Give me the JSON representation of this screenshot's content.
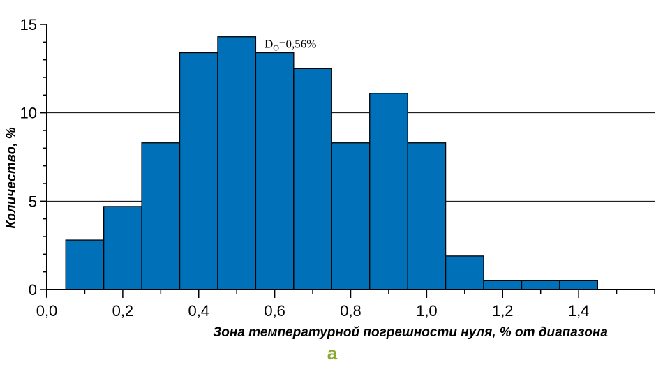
{
  "chart_data": {
    "type": "bar",
    "title": "",
    "xlabel": "Зона температурной погрешности нуля, % от диапазона",
    "ylabel": "Количество, %",
    "x_ticks": [
      "0,0",
      "0,2",
      "0,4",
      "0,6",
      "0,8",
      "1,0",
      "1,2",
      "1,4"
    ],
    "x_tick_values": [
      0.0,
      0.2,
      0.4,
      0.6,
      0.8,
      1.0,
      1.2,
      1.4
    ],
    "y_ticks": [
      "0",
      "5",
      "10",
      "15"
    ],
    "y_tick_values": [
      0,
      5,
      10,
      15
    ],
    "xlim": [
      0.0,
      1.6
    ],
    "ylim": [
      0,
      15
    ],
    "grid": "horizontal",
    "bar_color": "#0070b8",
    "bins": [
      {
        "x0": 0.05,
        "x1": 0.15,
        "value": 2.8
      },
      {
        "x0": 0.15,
        "x1": 0.25,
        "value": 4.7
      },
      {
        "x0": 0.25,
        "x1": 0.35,
        "value": 8.3
      },
      {
        "x0": 0.35,
        "x1": 0.45,
        "value": 13.4
      },
      {
        "x0": 0.45,
        "x1": 0.55,
        "value": 14.3
      },
      {
        "x0": 0.55,
        "x1": 0.65,
        "value": 13.4
      },
      {
        "x0": 0.65,
        "x1": 0.75,
        "value": 12.5
      },
      {
        "x0": 0.75,
        "x1": 0.85,
        "value": 8.3
      },
      {
        "x0": 0.85,
        "x1": 0.95,
        "value": 11.1
      },
      {
        "x0": 0.95,
        "x1": 1.05,
        "value": 8.3
      },
      {
        "x0": 1.05,
        "x1": 1.15,
        "value": 1.9
      },
      {
        "x0": 1.15,
        "x1": 1.25,
        "value": 0.5
      },
      {
        "x0": 1.25,
        "x1": 1.35,
        "value": 0.5
      },
      {
        "x0": 1.35,
        "x1": 1.45,
        "value": 0.5
      }
    ],
    "annotation": {
      "main": "D",
      "sub": "O",
      "rest": "=0,56%",
      "x": 0.45,
      "y": 14.3
    }
  },
  "panel_label": "а"
}
